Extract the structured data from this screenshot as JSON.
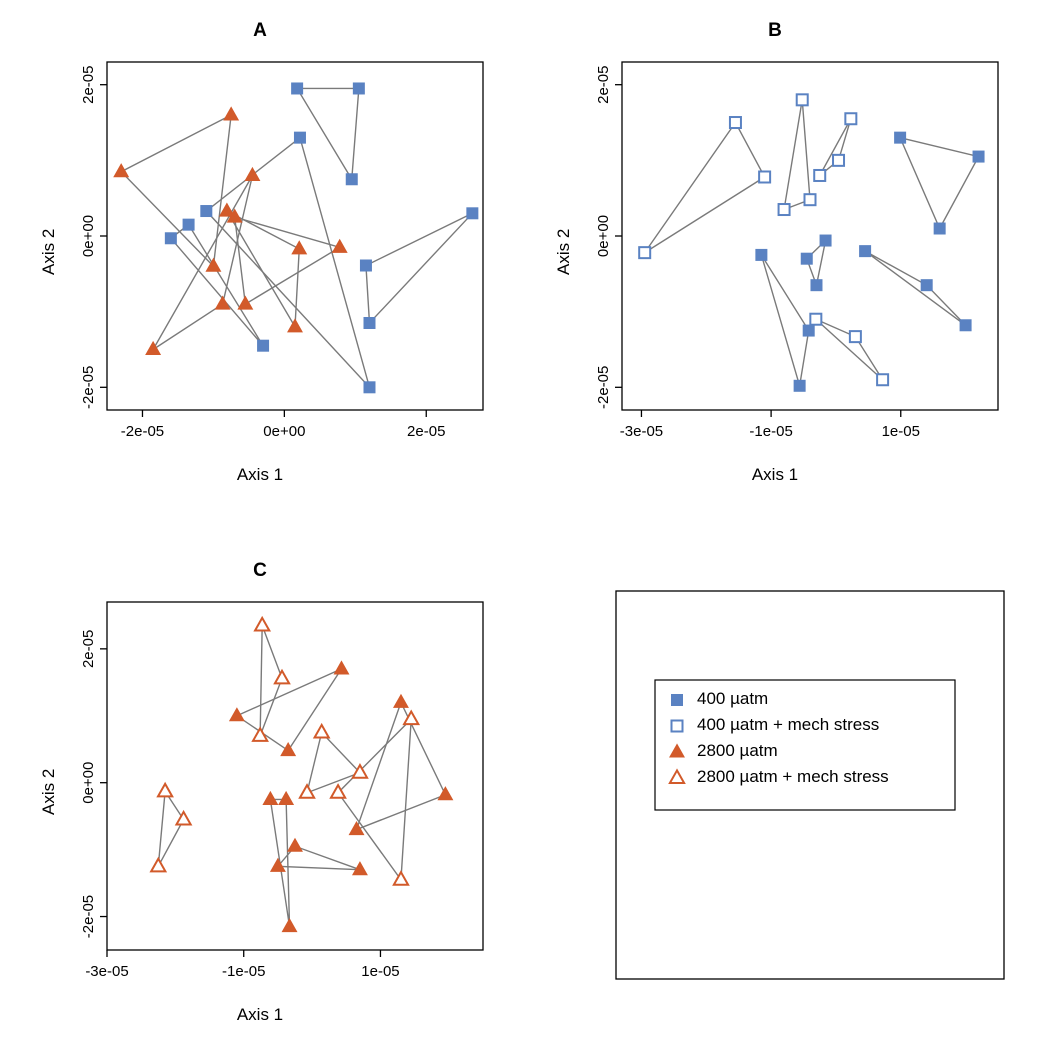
{
  "colors": {
    "blue": "#5a82c2",
    "orange": "#d25a2a",
    "line": "#7a7a7a",
    "axis": "#000000",
    "bg": "#ffffff"
  },
  "marker_size": 11,
  "line_width": 1.4,
  "panels": {
    "A": {
      "title": "A",
      "xlabel": "Axis 1",
      "ylabel": "Axis 2",
      "xlim": [
        -2.5e-05,
        2.8e-05
      ],
      "ylim": [
        -2.3e-05,
        2.3e-05
      ],
      "xticks": [
        -2e-05,
        0,
        2e-05
      ],
      "xticklabels": [
        "-2e-05",
        "0e+00",
        "2e-05"
      ],
      "yticks": [
        -2e-05,
        0,
        2e-05
      ],
      "yticklabels": [
        "-2e-05",
        "0e+00",
        "2e-05"
      ],
      "series": [
        {
          "marker": "filled-square",
          "color": "blue",
          "points": [
            [
              1.8e-06,
              1.95e-05
            ],
            [
              1.05e-05,
              1.95e-05
            ],
            [
              9.5e-06,
              7.5e-06
            ]
          ]
        },
        {
          "marker": "filled-square",
          "color": "blue",
          "points": [
            [
              2.65e-05,
              3e-06
            ],
            [
              1.2e-05,
              -1.15e-05
            ],
            [
              1.15e-05,
              -3.9e-06
            ]
          ]
        },
        {
          "marker": "filled-square",
          "color": "blue",
          "points": [
            [
              -3e-06,
              -1.45e-05
            ],
            [
              -1.6e-05,
              -3e-07
            ],
            [
              -1.35e-05,
              1.5e-06
            ]
          ]
        },
        {
          "marker": "filled-square",
          "color": "blue",
          "points": [
            [
              1.2e-05,
              -2e-05
            ],
            [
              2.2e-06,
              1.3e-05
            ],
            [
              -1.1e-05,
              3.3e-06
            ]
          ]
        },
        {
          "marker": "filled-triangle",
          "color": "orange",
          "points": [
            [
              -7.5e-06,
              1.6e-05
            ],
            [
              -2.3e-05,
              8.5e-06
            ],
            [
              -1e-05,
              -4e-06
            ]
          ]
        },
        {
          "marker": "filled-triangle",
          "color": "orange",
          "points": [
            [
              -4.5e-06,
              8e-06
            ],
            [
              -8.7e-06,
              -9e-06
            ],
            [
              -1.85e-05,
              -1.5e-05
            ]
          ]
        },
        {
          "marker": "filled-triangle",
          "color": "orange",
          "points": [
            [
              -7e-06,
              2.5e-06
            ],
            [
              -5.5e-06,
              -9e-06
            ],
            [
              7.8e-06,
              -1.5e-06
            ]
          ]
        },
        {
          "marker": "filled-triangle",
          "color": "orange",
          "points": [
            [
              1.5e-06,
              -1.2e-05
            ],
            [
              2.1e-06,
              -1.7e-06
            ],
            [
              -8.1e-06,
              3.3e-06
            ]
          ]
        }
      ]
    },
    "B": {
      "title": "B",
      "xlabel": "Axis 1",
      "ylabel": "Axis 2",
      "xlim": [
        -3.3e-05,
        2.5e-05
      ],
      "ylim": [
        -2.3e-05,
        2.3e-05
      ],
      "xticks": [
        -3e-05,
        -1e-05,
        1e-05
      ],
      "xticklabels": [
        "-3e-05",
        "-1e-05",
        "1e-05"
      ],
      "yticks": [
        -2e-05,
        0,
        2e-05
      ],
      "yticklabels": [
        "-2e-05",
        "0e+00",
        "2e-05"
      ],
      "series": [
        {
          "marker": "open-square",
          "color": "blue",
          "points": [
            [
              -2.95e-05,
              -2.2e-06
            ],
            [
              -1.55e-05,
              1.5e-05
            ],
            [
              -1.1e-05,
              7.8e-06
            ]
          ]
        },
        {
          "marker": "open-square",
          "color": "blue",
          "points": [
            [
              -8e-06,
              3.5e-06
            ],
            [
              -4e-06,
              4.8e-06
            ],
            [
              -5.2e-06,
              1.8e-05
            ]
          ]
        },
        {
          "marker": "open-square",
          "color": "blue",
          "points": [
            [
              -2.5e-06,
              8e-06
            ],
            [
              4e-07,
              1e-05
            ],
            [
              2.3e-06,
              1.55e-05
            ]
          ]
        },
        {
          "marker": "open-square",
          "color": "blue",
          "points": [
            [
              -3.1e-06,
              -1.1e-05
            ],
            [
              7.2e-06,
              -1.9e-05
            ],
            [
              3e-06,
              -1.33e-05
            ]
          ]
        },
        {
          "marker": "filled-square",
          "color": "blue",
          "points": [
            [
              9.9e-06,
              1.3e-05
            ],
            [
              2.2e-05,
              1.05e-05
            ],
            [
              1.6e-05,
              9.9e-07
            ]
          ]
        },
        {
          "marker": "filled-square",
          "color": "blue",
          "points": [
            [
              -1.15e-05,
              -2.5e-06
            ],
            [
              -4.2e-06,
              -1.25e-05
            ],
            [
              -5.6e-06,
              -1.98e-05
            ]
          ]
        },
        {
          "marker": "filled-square",
          "color": "blue",
          "points": [
            [
              -4.5e-06,
              -3e-06
            ],
            [
              -3e-06,
              -6.5e-06
            ],
            [
              -1.6e-06,
              -6e-07
            ]
          ]
        },
        {
          "marker": "filled-square",
          "color": "blue",
          "points": [
            [
              4.5e-06,
              -2e-06
            ],
            [
              1.4e-05,
              -6.5e-06
            ],
            [
              2e-05,
              -1.18e-05
            ]
          ]
        }
      ]
    },
    "C": {
      "title": "C",
      "xlabel": "Axis 1",
      "ylabel": "Axis 2",
      "xlim": [
        -3e-05,
        2.5e-05
      ],
      "ylim": [
        -2.5e-05,
        2.7e-05
      ],
      "xticks": [
        -3e-05,
        -1e-05,
        1e-05
      ],
      "xticklabels": [
        "-3e-05",
        "-1e-05",
        "1e-05"
      ],
      "yticks": [
        -2e-05,
        0,
        2e-05
      ],
      "yticklabels": [
        "-2e-05",
        "0e+00",
        "2e-05"
      ],
      "series": [
        {
          "marker": "filled-triangle",
          "color": "orange",
          "points": [
            [
              -1.1e-05,
              1e-05
            ],
            [
              -3.5e-06,
              4.8e-06
            ],
            [
              4.3e-06,
              1.7e-05
            ]
          ]
        },
        {
          "marker": "filled-triangle",
          "color": "orange",
          "points": [
            [
              1.3e-05,
              1.2e-05
            ],
            [
              1.95e-05,
              -1.8e-06
            ],
            [
              6.5e-06,
              -7e-06
            ]
          ]
        },
        {
          "marker": "filled-triangle",
          "color": "orange",
          "points": [
            [
              -5e-06,
              -1.25e-05
            ],
            [
              -2.5e-06,
              -9.5e-06
            ],
            [
              7e-06,
              -1.3e-05
            ]
          ]
        },
        {
          "marker": "filled-triangle",
          "color": "orange",
          "points": [
            [
              -3.3e-06,
              -2.15e-05
            ],
            [
              -6.1e-06,
              -2.5e-06
            ],
            [
              -3.8e-06,
              -2.5e-06
            ]
          ]
        },
        {
          "marker": "open-triangle",
          "color": "orange",
          "points": [
            [
              -7.3e-06,
              2.35e-05
            ],
            [
              -7.6e-06,
              7e-06
            ],
            [
              -4.4e-06,
              1.56e-05
            ]
          ]
        },
        {
          "marker": "open-triangle",
          "color": "orange",
          "points": [
            [
              -2.15e-05,
              -1.3e-06
            ],
            [
              -1.88e-05,
              -5.5e-06
            ],
            [
              -2.25e-05,
              -1.25e-05
            ]
          ]
        },
        {
          "marker": "open-triangle",
          "color": "orange",
          "points": [
            [
              1.45e-05,
              9.5e-06
            ],
            [
              1.3e-05,
              -1.45e-05
            ],
            [
              3.8e-06,
              -1.5e-06
            ]
          ]
        },
        {
          "marker": "open-triangle",
          "color": "orange",
          "points": [
            [
              -7.4e-07,
              -1.5e-06
            ],
            [
              7e-06,
              1.5e-06
            ],
            [
              1.4e-06,
              7.5e-06
            ]
          ]
        }
      ]
    }
  },
  "legend": {
    "items": [
      {
        "marker": "filled-square",
        "color": "blue",
        "label": "400 µatm"
      },
      {
        "marker": "open-square",
        "color": "blue",
        "label": "400 µatm + mech stress"
      },
      {
        "marker": "filled-triangle",
        "color": "orange",
        "label": "2800 µatm"
      },
      {
        "marker": "open-triangle",
        "color": "orange",
        "label": "2800 µatm + mech stress"
      }
    ]
  }
}
